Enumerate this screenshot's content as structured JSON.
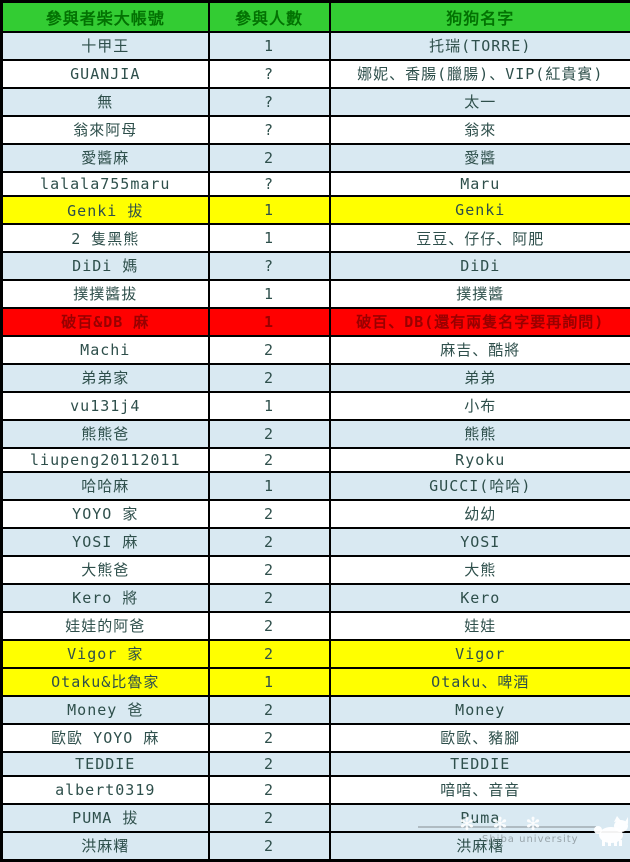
{
  "table": {
    "columns": [
      "參與者柴大帳號",
      "參與人數",
      "狗狗名字"
    ],
    "rows": [
      {
        "account": "十甲王",
        "count": "1",
        "dogs": "托瑞(TORRE)",
        "highlight": "blue"
      },
      {
        "account": "GUANJIA",
        "count": "?",
        "dogs": "娜妮、香腸(臘腸)、VIP(紅貴賓)",
        "highlight": "white"
      },
      {
        "account": "無",
        "count": "?",
        "dogs": "太一",
        "highlight": "blue"
      },
      {
        "account": "翁來阿母",
        "count": "?",
        "dogs": "翁來",
        "highlight": "white"
      },
      {
        "account": "愛醬麻",
        "count": "2",
        "dogs": "愛醬",
        "highlight": "blue"
      },
      {
        "account": "lalala755maru",
        "count": "?",
        "dogs": "Maru",
        "highlight": "white"
      },
      {
        "account": "Genki 拔",
        "count": "1",
        "dogs": "Genki",
        "highlight": "yellow"
      },
      {
        "account": "2 隻黑熊",
        "count": "1",
        "dogs": "豆豆、仔仔、阿肥",
        "highlight": "white"
      },
      {
        "account": "DiDi 媽",
        "count": "?",
        "dogs": "DiDi",
        "highlight": "blue"
      },
      {
        "account": "撲撲醬拔",
        "count": "1",
        "dogs": "撲撲醬",
        "highlight": "white"
      },
      {
        "account": "破百&DB 麻",
        "count": "1",
        "dogs": "破百、DB(還有兩隻名字要再詢問)",
        "highlight": "red"
      },
      {
        "account": "Machi",
        "count": "2",
        "dogs": "麻吉、酷將",
        "highlight": "white"
      },
      {
        "account": "弟弟家",
        "count": "2",
        "dogs": "弟弟",
        "highlight": "blue"
      },
      {
        "account": "vu131j4",
        "count": "1",
        "dogs": "小布",
        "highlight": "white"
      },
      {
        "account": "熊熊爸",
        "count": "2",
        "dogs": "熊熊",
        "highlight": "blue"
      },
      {
        "account": "liupeng20112011",
        "count": "2",
        "dogs": "Ryoku",
        "highlight": "white"
      },
      {
        "account": "哈哈麻",
        "count": "1",
        "dogs": "GUCCI(哈哈)",
        "highlight": "blue"
      },
      {
        "account": "YOYO 家",
        "count": "2",
        "dogs": "幼幼",
        "highlight": "white"
      },
      {
        "account": "YOSI 麻",
        "count": "2",
        "dogs": "YOSI",
        "highlight": "blue"
      },
      {
        "account": "大熊爸",
        "count": "2",
        "dogs": "大熊",
        "highlight": "white"
      },
      {
        "account": "Kero 將",
        "count": "2",
        "dogs": "Kero",
        "highlight": "blue"
      },
      {
        "account": "娃娃的阿爸",
        "count": "2",
        "dogs": "娃娃",
        "highlight": "white"
      },
      {
        "account": "Vigor 家",
        "count": "2",
        "dogs": "Vigor",
        "highlight": "yellow"
      },
      {
        "account": "Otaku&比魯家",
        "count": "1",
        "dogs": "Otaku、啤酒",
        "highlight": "yellow"
      },
      {
        "account": "Money 爸",
        "count": "2",
        "dogs": "Money",
        "highlight": "blue"
      },
      {
        "account": "歐歐 YOYO 麻",
        "count": "2",
        "dogs": "歐歐、豬腳",
        "highlight": "white"
      },
      {
        "account": "TEDDIE",
        "count": "2",
        "dogs": "TEDDIE",
        "highlight": "blue"
      },
      {
        "account": "albert0319",
        "count": "2",
        "dogs": "喑喑、音音",
        "highlight": "white"
      },
      {
        "account": "PUMA 拔",
        "count": "2",
        "dogs": "Puma",
        "highlight": "blue"
      },
      {
        "account": "洪麻糬",
        "count": "2",
        "dogs": "洪麻糬",
        "highlight": "blue"
      }
    ]
  },
  "colors": {
    "header_bg": "#33cc33",
    "header_text": "#037203",
    "row_blue": "#d9e9f2",
    "row_white": "#ffffff",
    "row_yellow": "#ffff00",
    "row_red_bg": "#ff0000",
    "row_red_text": "#990000",
    "body_text": "#2e4f4b",
    "border": "#000000"
  },
  "watermark": {
    "text": "Shiba university",
    "decor": "✻✻✻"
  }
}
